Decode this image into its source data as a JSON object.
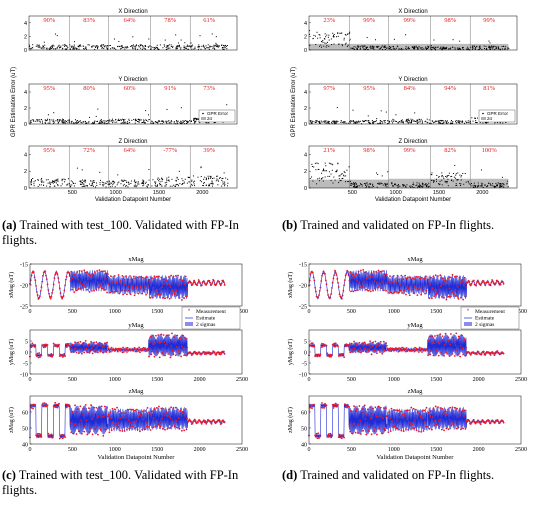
{
  "captions": {
    "a": {
      "letter": "(a)",
      "text": "Trained with test_100. Validated with FP-In flights."
    },
    "b": {
      "letter": "(b)",
      "text": "Trained and validated on FP-In flights."
    },
    "c": {
      "letter": "(c)",
      "text": "Trained with test_100. Validated with FP-In flights."
    },
    "d": {
      "letter": "(d)",
      "text": "Trained and validated on FP-In flights."
    }
  },
  "chart_data": [
    {
      "id": "a",
      "type": "scatter",
      "ylabel": "GPR Estimation Error (uT)",
      "xlabel": "Validation Datapoint Number",
      "xlim": [
        0,
        2400
      ],
      "segment_bounds": [
        0,
        470,
        920,
        1400,
        1860,
        2300
      ],
      "legend": {
        "entries": [
          "GPR Error",
          "2σ"
        ],
        "placement": "bottom-right of Y Direction panel"
      },
      "panels": [
        {
          "title": "X Direction",
          "ylim": [
            0,
            5
          ],
          "yticks": [
            0,
            2,
            4
          ],
          "percentages": [
            "90%",
            "83%",
            "64%",
            "78%",
            "61%"
          ],
          "sigma": [
            0,
            0,
            0,
            0,
            0
          ],
          "level": [
            0.5,
            0.5,
            0.5,
            0.5,
            0.5
          ]
        },
        {
          "title": "Y Direction",
          "ylim": [
            0,
            5
          ],
          "yticks": [
            0,
            2,
            4
          ],
          "percentages": [
            "95%",
            "80%",
            "60%",
            "91%",
            "73%"
          ],
          "sigma": [
            0,
            0,
            0,
            0,
            0
          ],
          "level": [
            0.4,
            0.3,
            0.4,
            0.3,
            0.5
          ]
        },
        {
          "title": "Z Direction",
          "ylim": [
            0,
            5
          ],
          "yticks": [
            0,
            2,
            4
          ],
          "percentages": [
            "95%",
            "72%",
            "64%",
            "-77%",
            "39%"
          ],
          "sigma": [
            0,
            0,
            0,
            0,
            0
          ],
          "level": [
            0.7,
            0.6,
            0.6,
            0.8,
            0.9
          ]
        }
      ]
    },
    {
      "id": "b",
      "type": "scatter",
      "ylabel": "GPR Estimation Error (uT)",
      "xlabel": "Validation Datapoint Number",
      "xlim": [
        0,
        2400
      ],
      "segment_bounds": [
        0,
        470,
        920,
        1400,
        1860,
        2300
      ],
      "legend": {
        "entries": [
          "GPR Error",
          "2σ"
        ],
        "placement": "bottom-right of Y Direction panel"
      },
      "panels": [
        {
          "title": "X Direction",
          "ylim": [
            0,
            5
          ],
          "yticks": [
            0,
            2,
            4
          ],
          "percentages": [
            "23%",
            "99%",
            "99%",
            "98%",
            "99%"
          ],
          "sigma": [
            0.9,
            0.9,
            0.9,
            0.9,
            0.9
          ],
          "level": [
            1.6,
            0.4,
            0.4,
            0.3,
            0.4
          ]
        },
        {
          "title": "Y Direction",
          "ylim": [
            0,
            5
          ],
          "yticks": [
            0,
            2,
            4
          ],
          "percentages": [
            "97%",
            "95%",
            "84%",
            "94%",
            "81%"
          ],
          "sigma": [
            0,
            0,
            0,
            0,
            0
          ],
          "level": [
            0.3,
            0.3,
            0.4,
            0.3,
            0.5
          ]
        },
        {
          "title": "Z Direction",
          "ylim": [
            0,
            5
          ],
          "yticks": [
            0,
            2,
            4
          ],
          "percentages": [
            "21%",
            "98%",
            "99%",
            "82%",
            "100%"
          ],
          "sigma": [
            1.0,
            1.0,
            1.1,
            1.1,
            1.1
          ],
          "level": [
            1.8,
            0.4,
            0.4,
            1.1,
            0.4
          ]
        }
      ]
    },
    {
      "id": "c",
      "type": "line",
      "ylabel_prefix": "Mag (uT)",
      "xlabel": "Validation Datapoint Number",
      "xlim": [
        0,
        2500
      ],
      "xticks": [
        0,
        500,
        1000,
        1500,
        2000,
        2500
      ],
      "legend": {
        "entries": [
          "Measurement",
          "Estimate",
          "2 sigmas"
        ],
        "placement": "bottom-right of top panel"
      },
      "panels": [
        {
          "title": "xMag",
          "ylabel": "xMag (uT)",
          "ylim": [
            -25,
            -15
          ],
          "yticks": [
            -25,
            -20,
            -15
          ]
        },
        {
          "title": "yMag",
          "ylabel": "yMag (uT)",
          "ylim": [
            -10,
            10
          ],
          "yticks": [
            -10,
            -5,
            0,
            5
          ]
        },
        {
          "title": "zMag",
          "ylabel": "zMag (uT)",
          "ylim": [
            40,
            70
          ],
          "yticks": [
            40,
            50,
            60
          ]
        }
      ]
    },
    {
      "id": "d",
      "type": "line",
      "ylabel_prefix": "Mag (uT)",
      "xlabel": "Validation Datapoint Number",
      "xlim": [
        0,
        2500
      ],
      "xticks": [
        0,
        500,
        1000,
        1500,
        2000,
        2500
      ],
      "legend": {
        "entries": [
          "Measurement",
          "Estimate",
          "2 sigmas"
        ],
        "placement": "bottom-right of top panel"
      },
      "panels": [
        {
          "title": "xMag",
          "ylabel": "xMag (uT)",
          "ylim": [
            -25,
            -15
          ],
          "yticks": [
            -25,
            -20,
            -15
          ]
        },
        {
          "title": "yMag",
          "ylabel": "yMag (uT)",
          "ylim": [
            -10,
            10
          ],
          "yticks": [
            -10,
            -5,
            0,
            5
          ]
        },
        {
          "title": "zMag",
          "ylabel": "zMag (uT)",
          "ylim": [
            40,
            70
          ],
          "yticks": [
            40,
            50,
            60
          ]
        }
      ]
    }
  ],
  "colors": {
    "measurement": "#e8182b",
    "estimate": "#1f2bd6",
    "band": "#8a8cf0",
    "point": "#000000",
    "sigma": "#b0b0b0",
    "pct": "#e31a1c"
  }
}
